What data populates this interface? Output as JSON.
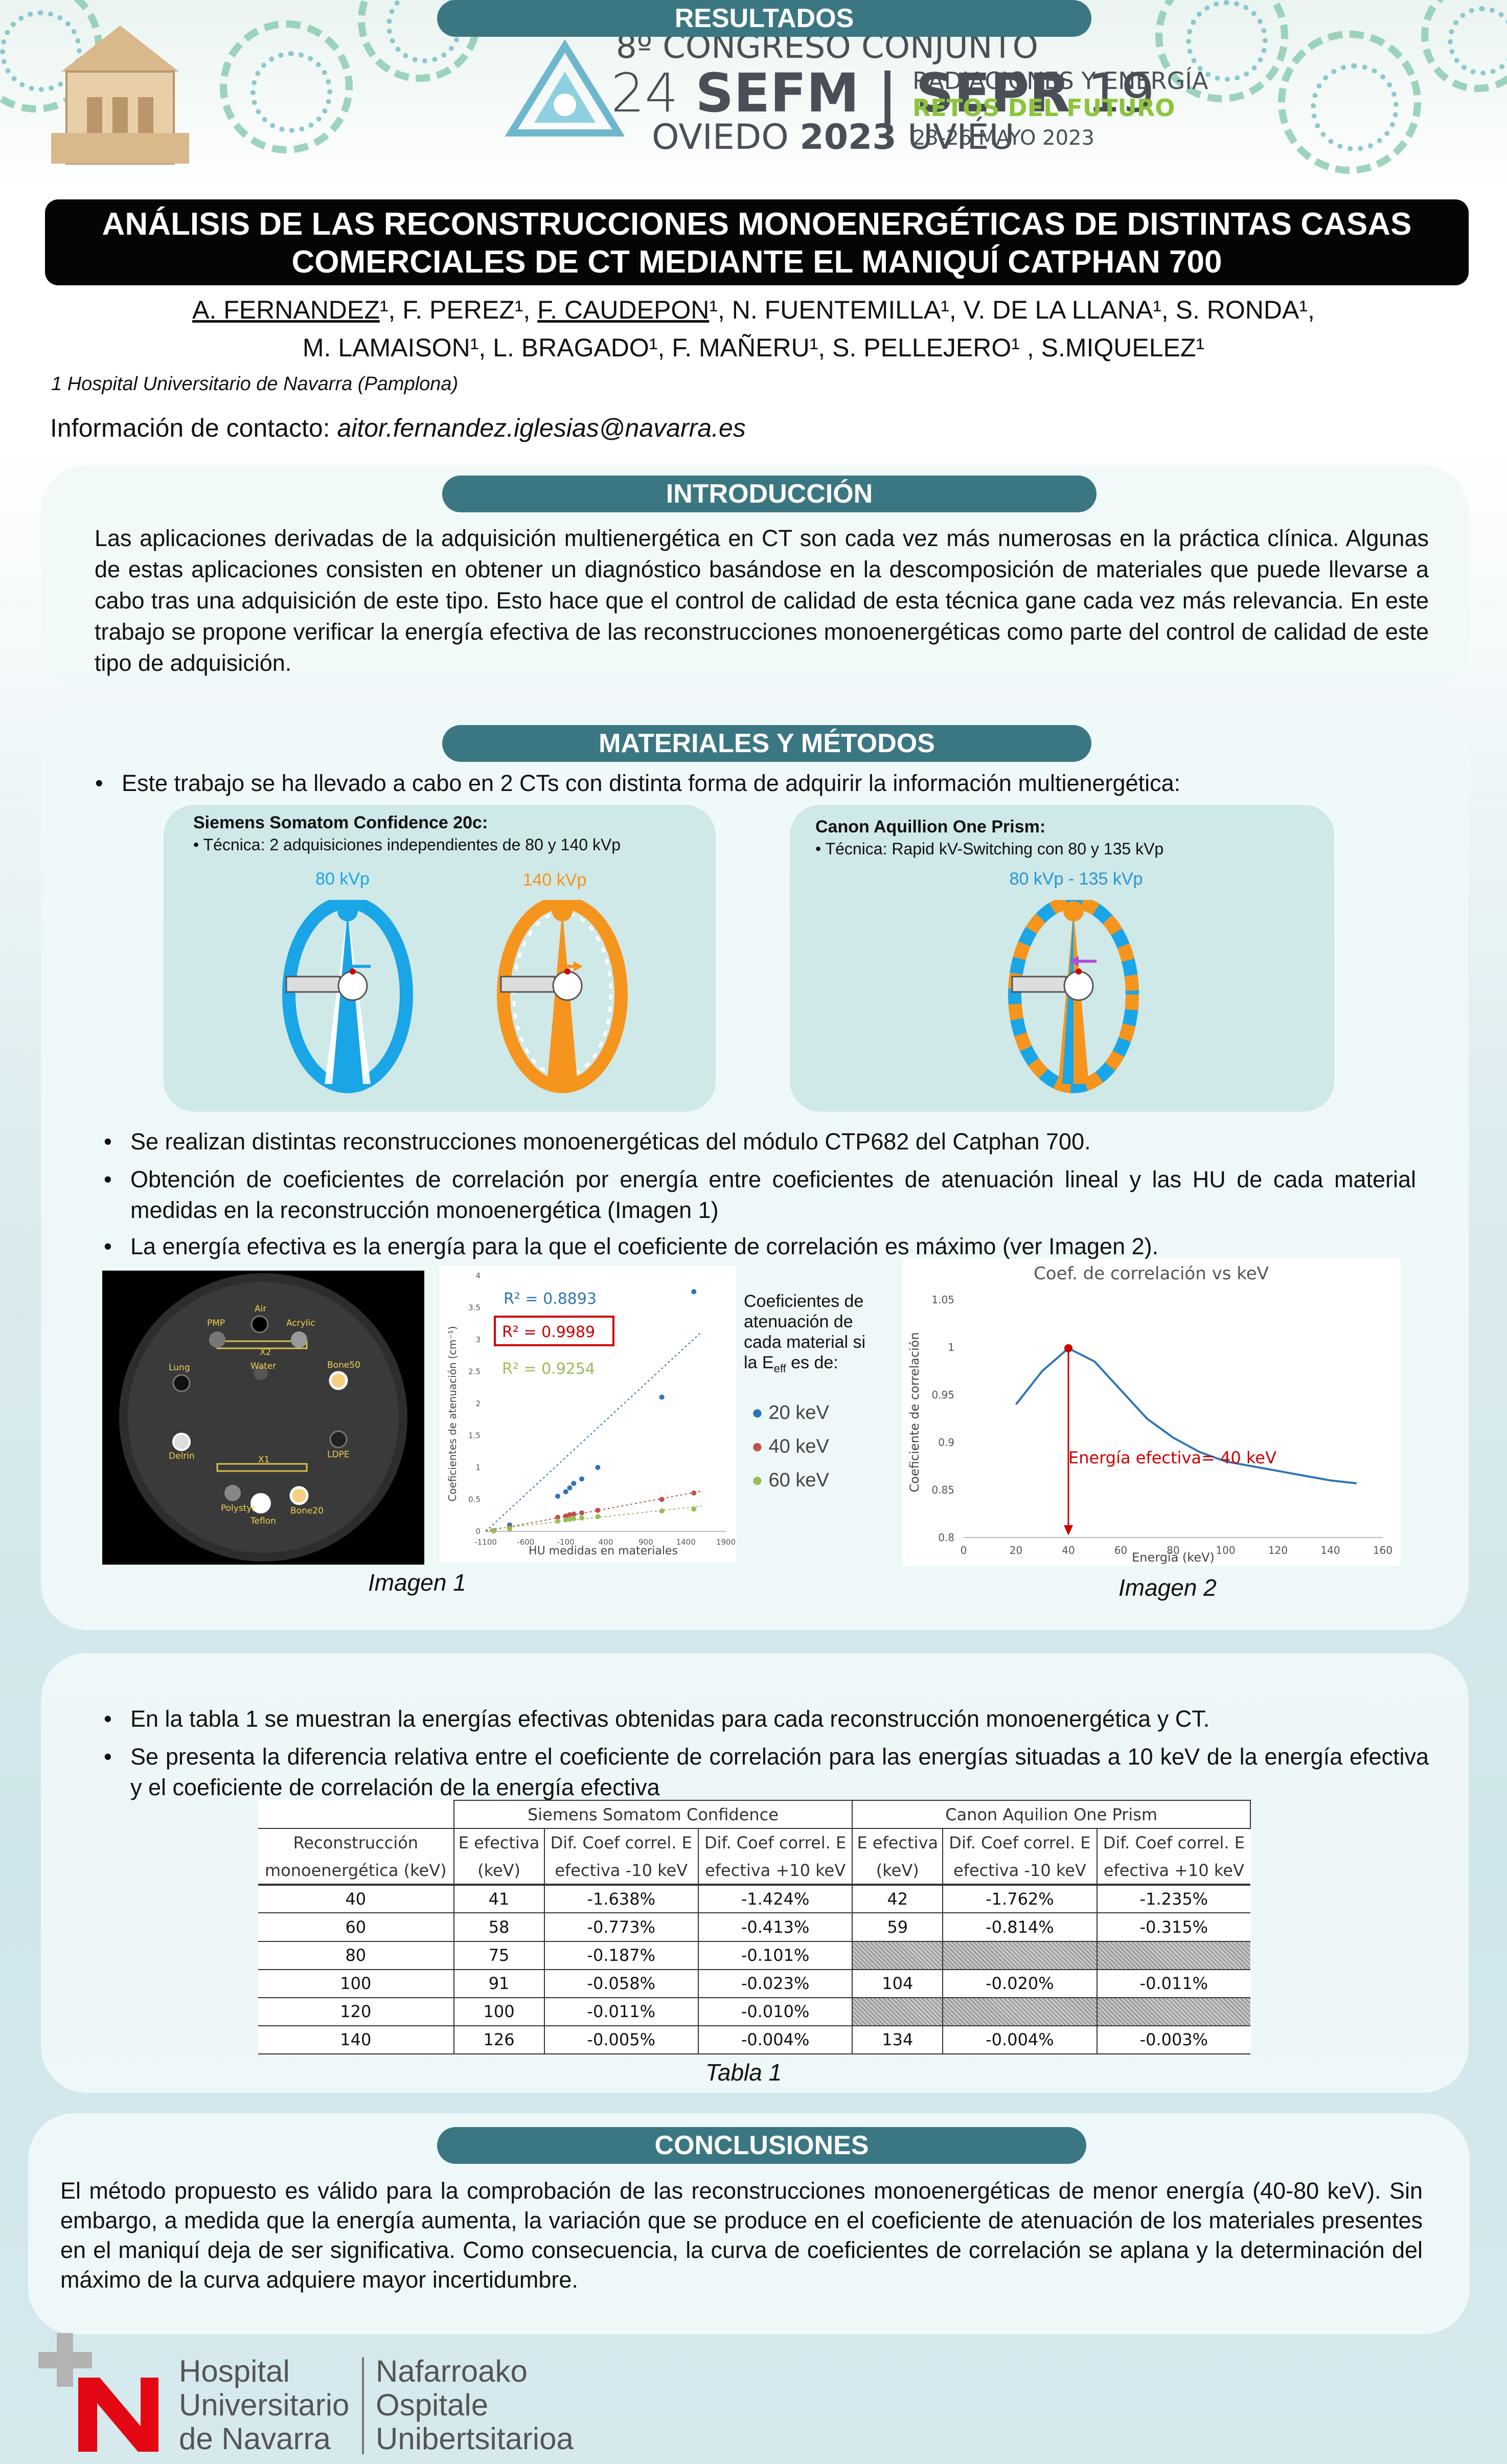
{
  "header": {
    "congress_line1": "8º CONGRESO CONJUNTO",
    "congress_num_left": "24",
    "congress_sefm": "SEFM",
    "congress_sepr": "SEPR",
    "congress_num_right": "19",
    "congress_city": "OVIEDO",
    "congress_year": "2023",
    "congress_city2": "UVIÉU",
    "theme_line1": "RADIACIONES Y ENERGÍA",
    "theme_line2": "RETOS DEL FUTURO",
    "dates": "23-26 MAYO 2023",
    "accent_green": "#8cc43c",
    "accent_gray": "#4a4f57"
  },
  "title": {
    "line1": "ANÁLISIS DE LAS RECONSTRUCCIONES MONOENERGÉTICAS DE DISTINTAS CASAS",
    "line2": "COMERCIALES DE CT MEDIANTE EL MANIQUÍ CATPHAN 700"
  },
  "authors": {
    "line1_parts": [
      "A. FERNANDEZ",
      "¹, F. PEREZ¹, ",
      "F. CAUDEPON",
      "¹, N. FUENTEMILLA¹, V. DE LA LLANA¹, S. RONDA¹,"
    ],
    "line2": "M. LAMAISON¹, L. BRAGADO¹, F. MAÑERU¹, S. PELLEJERO¹ , S.MIQUELEZ¹"
  },
  "affiliation": "1 Hospital Universitario de Navarra (Pamplona)",
  "contact": {
    "label": "Información de contacto: ",
    "email": "aitor.fernandez.iglesias@navarra.es"
  },
  "intro": {
    "title": "INTRODUCCIÓN",
    "text": "Las aplicaciones derivadas de la adquisición multienergética en CT son cada vez más numerosas en la práctica clínica. Algunas de estas aplicaciones consisten en obtener un diagnóstico basándose en la descomposición de materiales que puede llevarse a cabo tras una adquisición de este tipo. Esto hace que el control de calidad de esta técnica gane cada vez más relevancia. En este trabajo se propone verificar la energía efectiva de las reconstrucciones monoenergéticas como parte del control de calidad de este tipo de adquisición."
  },
  "methods": {
    "title": "MATERIALES Y MÉTODOS",
    "bullet0": "Este trabajo se ha llevado a cabo en 2 CTs con distinta forma de adquirir la información multienergética:",
    "siemens": {
      "title": "Siemens Somatom Confidence 20c:",
      "sub": "•   Técnica: 2 adquisiciones independientes de 80 y 140 kVp",
      "kvp1": "80 kVp",
      "kvp2": "140 kVp"
    },
    "canon": {
      "title": "Canon Aquillion One Prism:",
      "sub": "•   Técnica: Rapid kV-Switching con 80 y 135 kVp",
      "kvp": "80 kVp - 135 kVp"
    },
    "bullets": [
      "Se realizan distintas reconstrucciones monoenergéticas del módulo CTP682 del Catphan 700.",
      "Obtención de coeficientes de correlación por energía entre coeficientes de atenuación lineal y las HU de cada material medidas en la reconstrucción monoenergética (Imagen 1)",
      "La energía efectiva es la energía para la que el coeficiente de correlación es máximo (ver Imagen 2)."
    ],
    "phantom_labels": [
      "Air",
      "PMP",
      "Acrylic",
      "X2",
      "Water",
      "Lung",
      "Bone50",
      "Delrin",
      "LDPE",
      "X1",
      "Polystyr",
      "Bone20",
      "Teflon"
    ],
    "caption1": "Imagen 1",
    "caption2": "Imagen 2",
    "colors": {
      "kvp80": "#1aa5e6",
      "kvp140": "#f5951e",
      "canon_arrow": "#b04fd8"
    }
  },
  "chart_data": [
    {
      "type": "scatter",
      "title": "",
      "xlabel": "HU medidas en materiales",
      "ylabel": "Coeficientes de atenuación (cm⁻¹)",
      "xlim": [
        -1100,
        1900
      ],
      "ylim": [
        0,
        4
      ],
      "xticks": [
        -1100,
        -600,
        -100,
        400,
        900,
        1400,
        1900
      ],
      "xtick_labels": [
        "-1100",
        "-600",
        "-100",
        "400",
        "900",
        "1400",
        "1900"
      ],
      "yticks": [
        0,
        0.5,
        1,
        1.5,
        2,
        2.5,
        3,
        3.5,
        4
      ],
      "ytick_labels": [
        "0",
        "0.5",
        "1",
        "1.5",
        "2",
        "2.5",
        "3",
        "3.5",
        "4"
      ],
      "annotations": [
        "R² = 0.8893",
        "R² = 0.9989",
        "R² = 0.9254"
      ],
      "legend_title": "Coeficientes de atenuación de cada material si la E",
      "legend_title_sub": "eff",
      "legend_title_end": " es de:",
      "series": [
        {
          "name": "20 keV",
          "color": "#2e75b6",
          "points": [
            [
              -1000,
              0.01
            ],
            [
              -800,
              0.1
            ],
            [
              -200,
              0.55
            ],
            [
              -100,
              0.62
            ],
            [
              -50,
              0.68
            ],
            [
              0,
              0.75
            ],
            [
              100,
              0.82
            ],
            [
              300,
              1.0
            ],
            [
              1100,
              2.1
            ],
            [
              1500,
              3.75
            ]
          ]
        },
        {
          "name": "40 keV",
          "color": "#c0504d",
          "points": [
            [
              -1000,
              0.01
            ],
            [
              -800,
              0.06
            ],
            [
              -200,
              0.22
            ],
            [
              -100,
              0.24
            ],
            [
              -50,
              0.26
            ],
            [
              0,
              0.27
            ],
            [
              100,
              0.29
            ],
            [
              300,
              0.33
            ],
            [
              1100,
              0.5
            ],
            [
              1500,
              0.6
            ]
          ]
        },
        {
          "name": "60 keV",
          "color": "#9bbb59",
          "points": [
            [
              -1000,
              0.005
            ],
            [
              -800,
              0.04
            ],
            [
              -200,
              0.16
            ],
            [
              -100,
              0.18
            ],
            [
              -50,
              0.19
            ],
            [
              0,
              0.2
            ],
            [
              100,
              0.21
            ],
            [
              300,
              0.23
            ],
            [
              1100,
              0.32
            ],
            [
              1500,
              0.35
            ]
          ]
        }
      ]
    },
    {
      "type": "line",
      "title": "Coef. de correlación vs keV",
      "xlabel": "Energía (keV)",
      "ylabel": "Coeficiente de correlación",
      "xlim": [
        0,
        160
      ],
      "ylim": [
        0.8,
        1.05
      ],
      "xticks": [
        0,
        20,
        40,
        60,
        80,
        100,
        120,
        140,
        160
      ],
      "xtick_labels": [
        "0",
        "20",
        "40",
        "60",
        "80",
        "100",
        "120",
        "140",
        "160"
      ],
      "yticks": [
        0.8,
        0.85,
        0.9,
        0.95,
        1,
        1.05
      ],
      "ytick_labels": [
        "0.8",
        "0.85",
        "0.9",
        "0.95",
        "1",
        "1.05"
      ],
      "annotation": "Energía efectiva= 40 keV",
      "series": [
        {
          "color": "#2e75b6",
          "points": [
            [
              20,
              0.94
            ],
            [
              30,
              0.975
            ],
            [
              40,
              0.999
            ],
            [
              50,
              0.985
            ],
            [
              60,
              0.955
            ],
            [
              70,
              0.925
            ],
            [
              80,
              0.905
            ],
            [
              90,
              0.89
            ],
            [
              100,
              0.88
            ],
            [
              110,
              0.875
            ],
            [
              120,
              0.87
            ],
            [
              130,
              0.865
            ],
            [
              140,
              0.86
            ],
            [
              150,
              0.857
            ]
          ]
        }
      ]
    }
  ],
  "results": {
    "title": "RESULTADOS",
    "bullets": [
      "En la tabla 1 se muestran la energías efectivas obtenidas para cada reconstrucción monoenergética y CT.",
      "Se presenta la diferencia relativa entre el coeficiente de correlación para las energías situadas a 10 keV de la energía efectiva y el coeficiente de correlación de la energía efectiva"
    ],
    "table": {
      "group1": "Siemens Somatom Confidence",
      "group2": "Canon Aquilion One Prism",
      "headers_row1": [
        "Reconstrucción",
        "E efectiva",
        "Dif. Coef correl. E",
        "Dif. Coef correl. E",
        "E efectiva",
        "Dif. Coef correl. E",
        "Dif. Coef correl. E"
      ],
      "headers_row2": [
        "monoenergética (keV)",
        "(keV)",
        "efectiva -10 keV",
        "efectiva +10 keV",
        "(keV)",
        "efectiva -10 keV",
        "efectiva +10 keV"
      ],
      "rows": [
        [
          "40",
          "41",
          "-1.638%",
          "-1.424%",
          "42",
          "-1.762%",
          "-1.235%"
        ],
        [
          "60",
          "58",
          "-0.773%",
          "-0.413%",
          "59",
          "-0.814%",
          "-0.315%"
        ],
        [
          "80",
          "75",
          "-0.187%",
          "-0.101%",
          "",
          "",
          ""
        ],
        [
          "100",
          "91",
          "-0.058%",
          "-0.023%",
          "104",
          "-0.020%",
          "-0.011%"
        ],
        [
          "120",
          "100",
          "-0.011%",
          "-0.010%",
          "",
          "",
          ""
        ],
        [
          "140",
          "126",
          "-0.005%",
          "-0.004%",
          "134",
          "-0.004%",
          "-0.003%"
        ]
      ]
    },
    "caption": "Tabla 1"
  },
  "conclusions": {
    "title": "CONCLUSIONES",
    "text": "El método propuesto es válido para la comprobación de las reconstrucciones monoenergéticas de menor energía (40-80 keV). Sin embargo, a medida que la energía aumenta, la variación que se produce en el coeficiente de atenuación de los materiales presentes en el maniquí deja de ser significativa. Como consecuencia, la curva de coeficientes de correlación se aplana y la determinación del máximo de la curva adquiere mayor incertidumbre."
  },
  "footer_logo": {
    "lines_left": [
      "Hospital",
      "Universitario",
      "de Navarra"
    ],
    "lines_right": [
      "Nafarroako",
      "Ospitale",
      "Unibertsitarioa"
    ],
    "red": "#e30613"
  }
}
